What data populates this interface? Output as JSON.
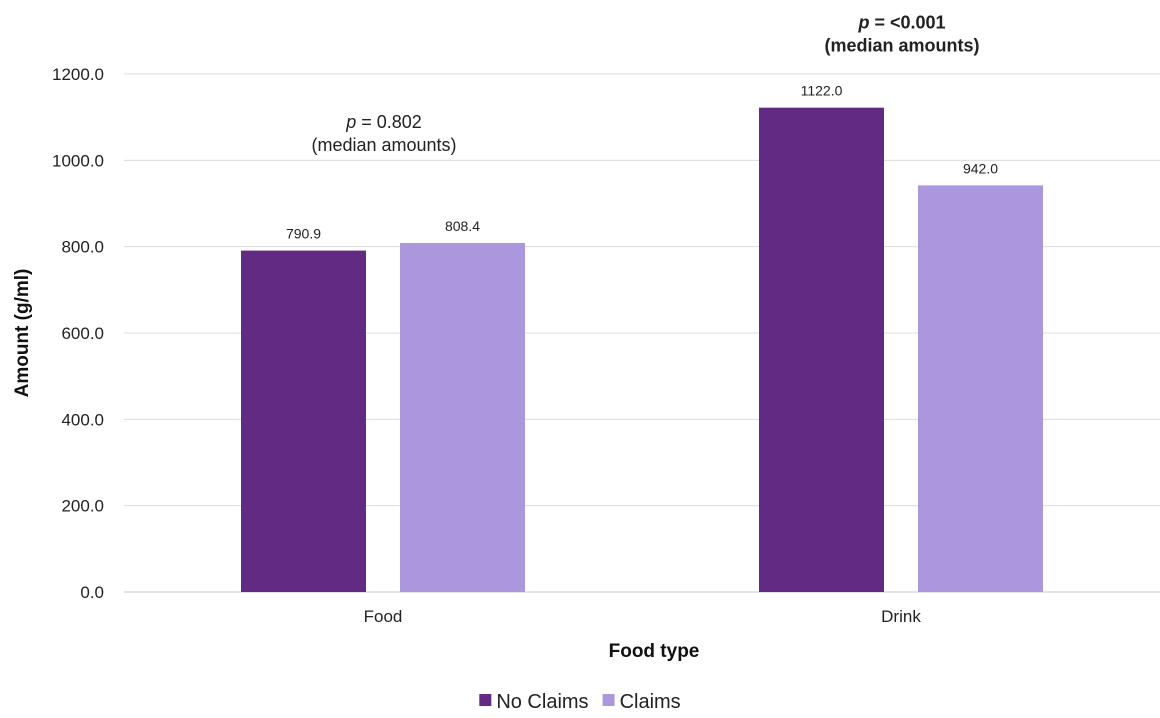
{
  "chart_data": {
    "type": "bar",
    "categories": [
      "Food",
      "Drink"
    ],
    "series": [
      {
        "name": "No Claims",
        "values": [
          790.9,
          1122.0
        ],
        "labels": [
          "790.9",
          "1122.0"
        ],
        "color": "#622a82"
      },
      {
        "name": "Claims",
        "values": [
          808.4,
          942.0
        ],
        "labels": [
          "808.4",
          "942.0"
        ],
        "color": "#ab97dd"
      }
    ],
    "xlabel": "Food type",
    "ylabel": "Amount (g/ml)",
    "ylim": [
      0,
      1200
    ],
    "yticks": [
      "0.0",
      "200.0",
      "400.0",
      "600.0",
      "800.0",
      "1000.0",
      "1200.0"
    ],
    "grid": true,
    "legend": "bottom",
    "annotations": [
      {
        "category": "Food",
        "p_label": "p",
        "p_value": "= 0.802",
        "note": "(median amounts)",
        "bold": false
      },
      {
        "category": "Drink",
        "p_label": "p",
        "p_value": "= <0.001",
        "note": "(median amounts)",
        "bold": true
      }
    ]
  }
}
